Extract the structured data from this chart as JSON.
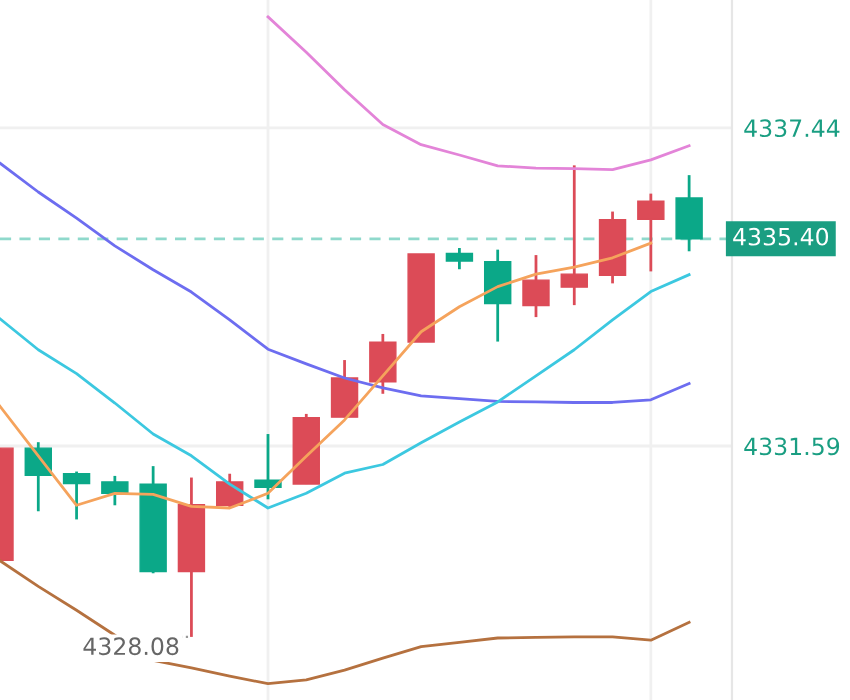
{
  "chart_data": {
    "type": "candlestick",
    "categories": [
      null,
      null,
      null,
      null,
      null,
      null,
      null,
      null,
      null,
      null,
      null,
      null,
      null,
      null,
      null,
      null,
      null,
      null,
      null
    ],
    "ohlc": [
      [
        4329.49,
        4331.55,
        4329.49,
        4331.55
      ],
      [
        4331.55,
        4331.66,
        4330.39,
        4331.05
      ],
      [
        4331.08,
        4331.12,
        4330.24,
        4330.9
      ],
      [
        4330.93,
        4331.04,
        4330.5,
        4330.72
      ],
      [
        4330.89,
        4331.22,
        4329.25,
        4329.28
      ],
      [
        4329.28,
        4331.01,
        4328.08,
        4330.51
      ],
      [
        4330.5,
        4331.08,
        4330.46,
        4330.93
      ],
      [
        4330.96,
        4331.81,
        4330.61,
        4330.83
      ],
      [
        4330.89,
        4332.18,
        4330.89,
        4332.11
      ],
      [
        4332.12,
        4333.17,
        4332.12,
        4332.84
      ],
      [
        4332.77,
        4333.65,
        4332.55,
        4333.5
      ],
      [
        4333.5,
        4335.12,
        4333.5,
        4335.12
      ],
      [
        4335.13,
        4335.23,
        4334.84,
        4334.99
      ],
      [
        4334.98,
        4335.2,
        4333.51,
        4334.21
      ],
      [
        4334.17,
        4335.1,
        4333.96,
        4334.64
      ],
      [
        4334.51,
        4336.75,
        4334.18,
        4334.75
      ],
      [
        4334.73,
        4335.9,
        4334.58,
        4335.75
      ],
      [
        4335.76,
        4336.23,
        4334.8,
        4336.09
      ],
      [
        4336.15,
        4336.57,
        4335.17,
        4335.4
      ]
    ],
    "colors": [
      "#dc4b57",
      "#0ba888",
      "#0ba888",
      "#0ba888",
      "#0ba888",
      "#dc4b57",
      "#dc4b57",
      "#0ba888",
      "#dc4b57",
      "#dc4b57",
      "#dc4b57",
      "#dc4b57",
      "#0ba888",
      "#0ba888",
      "#dc4b57",
      "#dc4b57",
      "#dc4b57",
      "#dc4b57",
      "#0ba888"
    ],
    "series": [
      {
        "type": "line",
        "color": "#e384d8",
        "values": [
          null,
          null,
          null,
          null,
          null,
          null,
          null,
          4339.48,
          4338.83,
          4338.14,
          4337.5,
          4337.13,
          4336.94,
          4336.74,
          4336.7,
          4336.69,
          4336.67,
          4336.85,
          4337.11
        ]
      },
      {
        "type": "line",
        "color": "#6d6df0",
        "values": [
          4336.79,
          4336.26,
          4335.78,
          4335.27,
          4334.83,
          4334.42,
          4333.91,
          4333.37,
          4333.1,
          4332.84,
          4332.66,
          4332.51,
          4332.46,
          4332.41,
          4332.4,
          4332.39,
          4332.39,
          4332.44,
          4332.74
        ]
      },
      {
        "type": "line",
        "color": "#3cc8e0",
        "values": [
          4333.93,
          4333.36,
          4332.92,
          4332.38,
          4331.81,
          4331.41,
          4330.89,
          4330.45,
          4330.72,
          4331.09,
          4331.25,
          4331.65,
          4332.03,
          4332.4,
          4332.88,
          4333.36,
          4333.91,
          4334.43,
          4334.74
        ]
      },
      {
        "type": "line",
        "color": "#f5a35c",
        "values": [
          4332.32,
          4331.41,
          4330.5,
          4330.72,
          4330.7,
          4330.48,
          4330.45,
          4330.72,
          4331.4,
          4332.07,
          4332.88,
          4333.69,
          4334.15,
          4334.52,
          4334.75,
          4334.88,
          4335.05,
          4335.32,
          null
        ]
      },
      {
        "type": "line",
        "color": "#b5713f",
        "values": [
          4329.48,
          4329.01,
          4328.57,
          4328.11,
          4327.65,
          4327.51,
          4327.36,
          4327.22,
          4327.29,
          4327.47,
          4327.69,
          4327.9,
          4327.98,
          4328.06,
          4328.07,
          4328.08,
          4328.08,
          4328.02,
          4328.35
        ]
      }
    ],
    "ylim": [
      4326.92,
      4339.79
    ],
    "yticks": [
      4331.59,
      4337.44
    ],
    "ref_lines": [
      {
        "axis": "y",
        "value": 4335.4,
        "label": "4335.40",
        "color": "#8fd9cc",
        "line_style": "dashed"
      }
    ],
    "annotations": [
      {
        "text": "4328.08",
        "y": 4328.08
      }
    ],
    "grid": true,
    "tick_labels": "y"
  }
}
